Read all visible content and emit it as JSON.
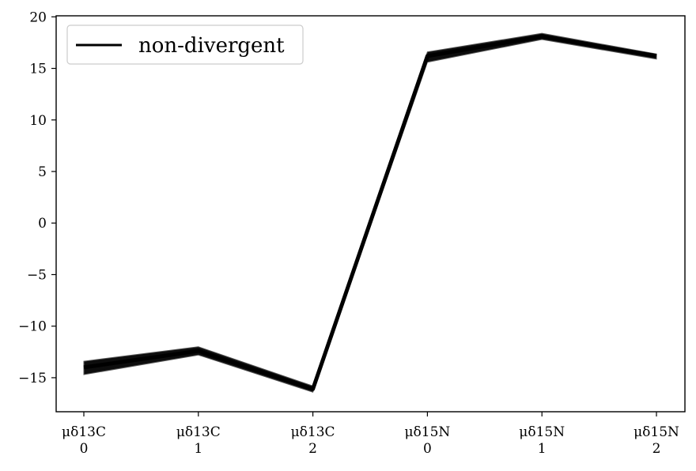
{
  "chart_data": {
    "type": "line",
    "title": "",
    "xlabel": "",
    "ylabel": "",
    "categories": [
      [
        "μδ13C",
        "0"
      ],
      [
        "μδ13C",
        "1"
      ],
      [
        "μδ13C",
        "2"
      ],
      [
        "μδ15N",
        "0"
      ],
      [
        "μδ15N",
        "1"
      ],
      [
        "μδ15N",
        "2"
      ]
    ],
    "series": [
      {
        "name": "non-divergent",
        "color": "#000000",
        "center": [
          -14.0,
          -12.4,
          -16.1,
          16.2,
          18.1,
          16.2
        ],
        "lower": [
          -14.7,
          -12.8,
          -16.4,
          15.6,
          17.8,
          15.9
        ],
        "upper": [
          -13.4,
          -12.0,
          -15.8,
          16.6,
          18.4,
          16.4
        ]
      }
    ],
    "ylim": [
      -18.3,
      20.1
    ],
    "yticks": [
      20,
      15,
      10,
      5,
      0,
      -5,
      -10,
      -15
    ],
    "ytick_labels": [
      "20",
      "15",
      "10",
      "5",
      "0",
      "−5",
      "−10",
      "−15"
    ],
    "grid": false,
    "legend": {
      "position": "top-left",
      "entries": [
        "non-divergent"
      ]
    }
  }
}
